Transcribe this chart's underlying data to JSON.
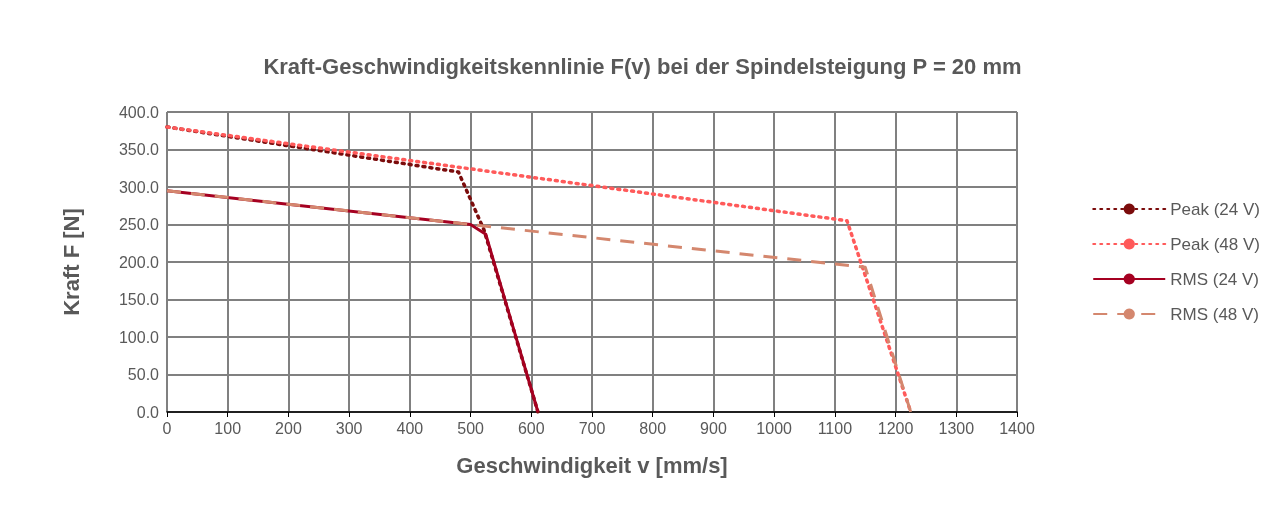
{
  "chart_data": {
    "type": "line",
    "title": "Kraft-Geschwindigkeitskennlinie F(v) bei der Spindelsteigung P = 20 mm",
    "xlabel": "Geschwindigkeit v [mm/s]",
    "ylabel": "Kraft F [N]",
    "xlim": [
      0,
      1400
    ],
    "xticks": [
      0,
      100,
      200,
      300,
      400,
      500,
      600,
      700,
      800,
      900,
      1000,
      1100,
      1200,
      1300,
      1400
    ],
    "ylim": [
      0,
      400
    ],
    "yticks": [
      {
        "value": 0,
        "label": "0.0"
      },
      {
        "value": 50,
        "label": "50.0"
      },
      {
        "value": 100,
        "label": "100.0"
      },
      {
        "value": 150,
        "label": "150.0"
      },
      {
        "value": 200,
        "label": "200.0"
      },
      {
        "value": 250,
        "label": "250.0"
      },
      {
        "value": 300,
        "label": "300.0"
      },
      {
        "value": 350,
        "label": "350.0"
      },
      {
        "value": 400,
        "label": "400.0"
      }
    ],
    "grid": true,
    "legend": "right",
    "marker": "none",
    "series": [
      {
        "name": "Peak (24 V)",
        "color": "#7b0c0c",
        "line_style": "dotted",
        "x": [
          0,
          480,
          522,
          611
        ],
        "values": [
          380,
          320,
          243,
          0
        ]
      },
      {
        "name": "Peak (48 V)",
        "color": "#ff5a5a",
        "line_style": "dotted",
        "x": [
          0,
          1120,
          1225
        ],
        "values": [
          380,
          255,
          0
        ]
      },
      {
        "name": "RMS (24 V)",
        "color": "#a50021",
        "line_style": "solid",
        "x": [
          0,
          500,
          525,
          611
        ],
        "values": [
          295,
          250,
          237,
          0
        ]
      },
      {
        "name": "RMS (48 V)",
        "color": "#d4876e",
        "line_style": "dashed",
        "x": [
          0,
          500,
          1150,
          1225
        ],
        "values": [
          295,
          250,
          193,
          0
        ]
      }
    ]
  }
}
